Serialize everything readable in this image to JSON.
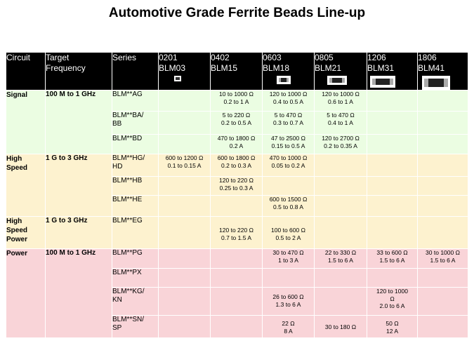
{
  "title": "Automotive Grade Ferrite Beads Line-up",
  "header": {
    "circuit": "Circuit",
    "freq_1": "Target",
    "freq_2": "Frequency",
    "series": "Series",
    "sizes": [
      {
        "code": "0201",
        "name": "BLM03"
      },
      {
        "code": "0402",
        "name": "BLM15"
      },
      {
        "code": "0603",
        "name": "BLM18"
      },
      {
        "code": "0805",
        "name": "BLM21"
      },
      {
        "code": "1206",
        "name": "BLM31"
      },
      {
        "code": "1806",
        "name": "BLM41"
      }
    ]
  },
  "groups": {
    "signal": {
      "circuit": "Signal",
      "freq": "100 M to 1 GHz"
    },
    "high_speed": {
      "circuit_1": "High",
      "circuit_2": "Speed",
      "freq": "1 G to 3 GHz"
    },
    "high_speed_power": {
      "circuit_1": "High",
      "circuit_2": "Speed",
      "circuit_3": "Power",
      "freq": "1 G to 3 GHz"
    },
    "power": {
      "circuit": "Power",
      "freq": "100 M to 1 GHz"
    }
  },
  "rows": {
    "ag": {
      "s1": "BLM**AG",
      "s2": "",
      "c0402": [
        "10 to 1000 Ω",
        "0.2 to 1 A"
      ],
      "c0603": [
        "120 to 1000 Ω",
        "0.4 to 0.5 A"
      ],
      "c0805": [
        "120 to 1000 Ω",
        "0.6 to 1 A"
      ]
    },
    "ba": {
      "s1": "BLM**BA/",
      "s2": "BB",
      "c0402": [
        "5 to 220 Ω",
        "0.2 to 0.5 A"
      ],
      "c0603": [
        "5 to 470 Ω",
        "0.3 to 0.7 A"
      ],
      "c0805": [
        "5 to 470 Ω",
        "0.4 to 1 A"
      ]
    },
    "bd": {
      "s1": "BLM**BD",
      "s2": "",
      "c0402": [
        "470 to 1800 Ω",
        "0.2 A"
      ],
      "c0603": [
        "47 to 2500 Ω",
        "0.15 to 0.5 A"
      ],
      "c0805": [
        "120 to 2700 Ω",
        "0.2 to 0.35 A"
      ]
    },
    "hg": {
      "s1": "BLM**HG/",
      "s2": "HD",
      "c0201": [
        "600 to 1200 Ω",
        "0.1 to 0.15 A"
      ],
      "c0402": [
        "600 to 1800 Ω",
        "0.2 to 0.3 A"
      ],
      "c0603": [
        "470 to 1000 Ω",
        "0.05 to 0.2 A"
      ]
    },
    "hb": {
      "s1": "BLM**HB",
      "s2": "",
      "c0402": [
        "120 to 220 Ω",
        "0.25 to 0.3 A"
      ]
    },
    "he": {
      "s1": "BLM**HE",
      "s2": "",
      "c0603": [
        "600 to 1500 Ω",
        "0.5 to 0.8 A"
      ]
    },
    "eg": {
      "s1": "BLM**EG",
      "s2": "",
      "c0402": [
        "120 to 220 Ω",
        "0.7 to 1.5 A"
      ],
      "c0603": [
        "100 to 600 Ω",
        "0.5 to 2 A"
      ]
    },
    "pg": {
      "s1": "BLM**PG",
      "s2": "",
      "c0603": [
        "30 to 470 Ω",
        "1 to 3 A"
      ],
      "c0805": [
        "22 to 330 Ω",
        "1.5 to 6 A"
      ],
      "c1206": [
        "33 to 600 Ω",
        "1.5 to 6 A"
      ],
      "c1806": [
        "30 to 1000 Ω",
        "1.5 to 6 A"
      ]
    },
    "px": {
      "s1": "BLM**PX",
      "s2": ""
    },
    "kg": {
      "s1": "BLM**KG/",
      "s2": "KN",
      "c0603": [
        "26 to 600 Ω",
        "1.3 to 6 A"
      ],
      "c1206": [
        "120 to 1000",
        "Ω",
        "2.0 to 6 A"
      ]
    },
    "sn": {
      "s1": "BLM**SN/",
      "s2": "SP",
      "c0603": [
        "22 Ω",
        "8 A"
      ],
      "c0805": [
        "30 to 180 Ω"
      ],
      "c1206": [
        "50 Ω",
        "12 A"
      ]
    }
  },
  "icons": [
    "chip-0201-icon",
    "chip-0402-icon",
    "chip-0603-icon",
    "chip-0805-icon",
    "chip-1206-icon",
    "chip-1806-icon"
  ],
  "colors": {
    "header": "#000000",
    "signal": "#ebfde2",
    "speed": "#fdf2cf",
    "power": "#f9d4d8"
  }
}
